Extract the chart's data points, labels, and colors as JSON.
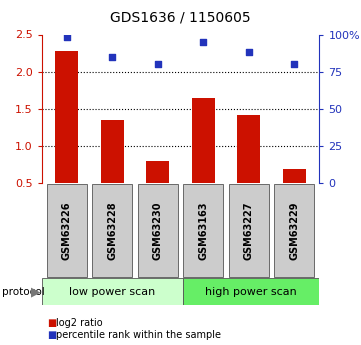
{
  "title": "GDS1636 / 1150605",
  "samples": [
    "GSM63226",
    "GSM63228",
    "GSM63230",
    "GSM63163",
    "GSM63227",
    "GSM63229"
  ],
  "log2_ratio": [
    2.28,
    1.35,
    0.8,
    1.65,
    1.42,
    0.68
  ],
  "percentile_rank": [
    98,
    85,
    80,
    95,
    88,
    80
  ],
  "left_ylim": [
    0.5,
    2.5
  ],
  "right_ylim": [
    0,
    100
  ],
  "left_yticks": [
    0.5,
    1.0,
    1.5,
    2.0,
    2.5
  ],
  "right_yticks": [
    0,
    25,
    50,
    75,
    100
  ],
  "right_yticklabels": [
    "0",
    "25",
    "50",
    "75",
    "100%"
  ],
  "dotted_lines": [
    1.0,
    1.5,
    2.0
  ],
  "bar_color": "#cc1100",
  "scatter_color": "#2233bb",
  "protocol_labels": [
    "low power scan",
    "high power scan"
  ],
  "protocol_colors": [
    "#ccffcc",
    "#66ee66"
  ],
  "bg_sample_color": "#cccccc",
  "legend_bar_label": "log2 ratio",
  "legend_scatter_label": "percentile rank within the sample"
}
